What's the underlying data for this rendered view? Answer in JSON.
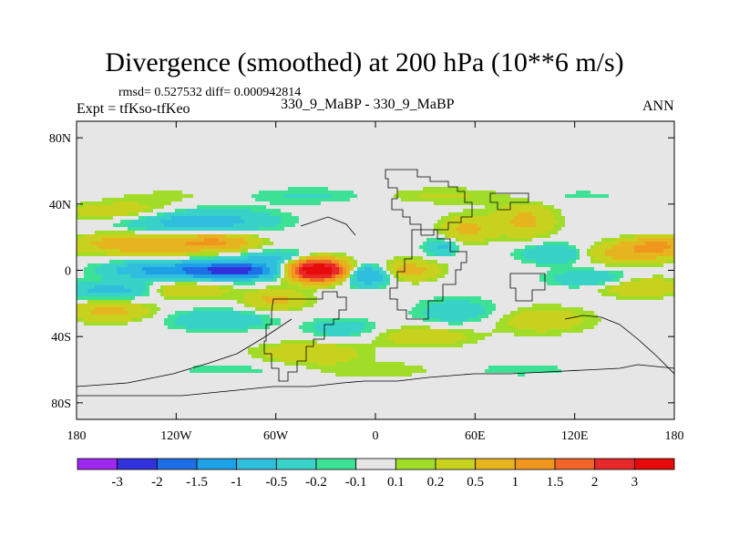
{
  "header": {
    "title": "Divergence (smoothed) at 200 hPa (10**6 m/s)",
    "stats": "rmsd= 0.527532 diff= 0.000942814",
    "left_label": "Expt = tfKso-tfKeo",
    "center_label": "330_9_MaBP - 330_9_MaBP",
    "right_label": "ANN"
  },
  "chart_data": {
    "type": "heatmap",
    "title": "Divergence (smoothed) at 200 hPa (10**6 m/s)",
    "xlabel": "",
    "ylabel": "",
    "xlim": [
      -180,
      180
    ],
    "ylim": [
      -90,
      90
    ],
    "x_ticks": [
      {
        "value": -180,
        "label": "180"
      },
      {
        "value": -120,
        "label": "120W"
      },
      {
        "value": -60,
        "label": "60W"
      },
      {
        "value": 0,
        "label": "0"
      },
      {
        "value": 60,
        "label": "60E"
      },
      {
        "value": 120,
        "label": "120E"
      },
      {
        "value": 180,
        "label": "180"
      }
    ],
    "y_ticks": [
      {
        "value": 80,
        "label": "80N"
      },
      {
        "value": 40,
        "label": "40N"
      },
      {
        "value": 0,
        "label": "0"
      },
      {
        "value": -40,
        "label": "40S"
      },
      {
        "value": -80,
        "label": "80S"
      }
    ],
    "colorbar": {
      "levels": [
        "-3",
        "-2",
        "-1.5",
        "-1",
        "-0.5",
        "-0.2",
        "-0.1",
        "0.1",
        "0.2",
        "0.5",
        "1",
        "1.5",
        "2",
        "3"
      ],
      "colors": [
        "#9f28f0",
        "#3232dc",
        "#1e6ee6",
        "#1ea0e6",
        "#2fbede",
        "#38d2c8",
        "#3ce196",
        "#e6e6e6",
        "#a0dc28",
        "#c8d21e",
        "#e6b41e",
        "#f0961e",
        "#f06428",
        "#e62828",
        "#e60a0a"
      ]
    },
    "features": [
      {
        "name": "equatorial maximum",
        "lon": -35,
        "lat": 0,
        "value": 3.5
      },
      {
        "name": "equatorial minimum",
        "lon": -85,
        "lat": 0,
        "value": -2.0
      }
    ]
  }
}
